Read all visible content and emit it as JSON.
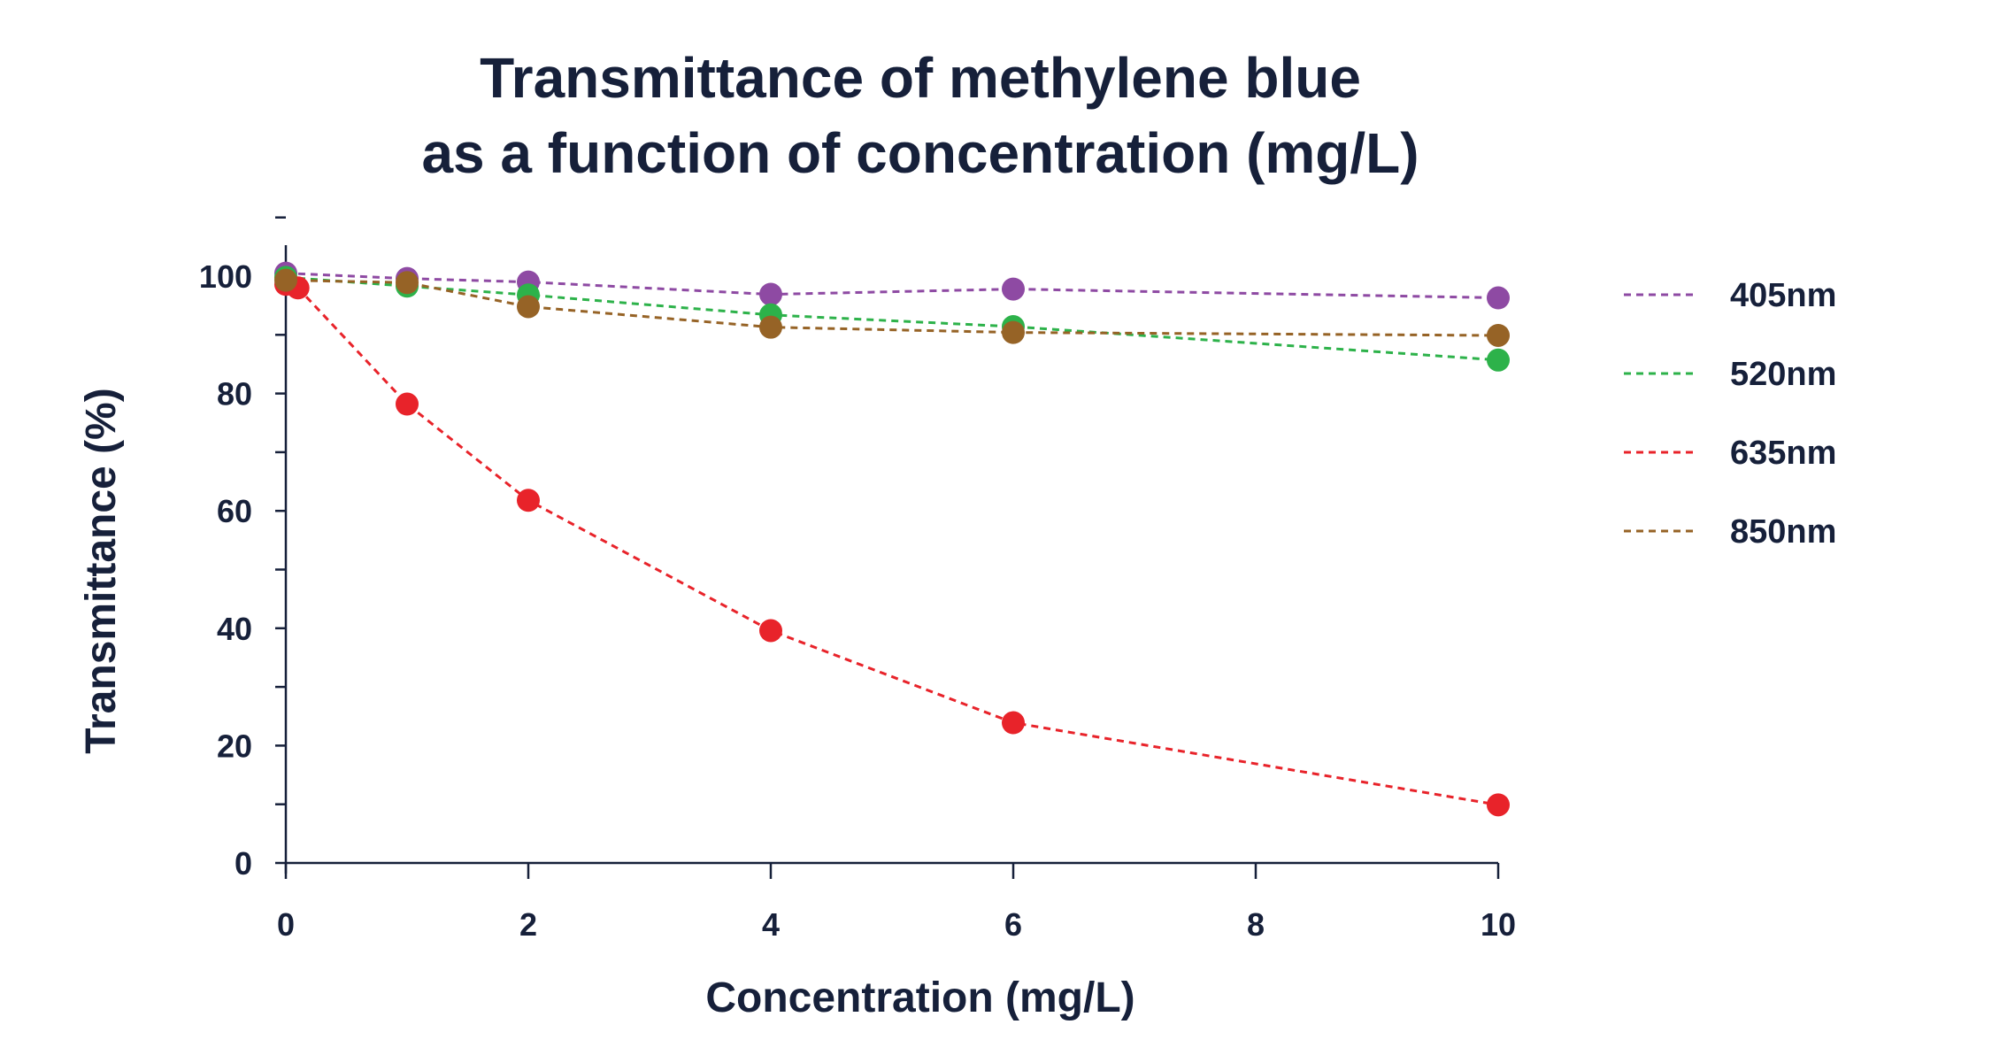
{
  "chart_data": {
    "type": "line",
    "title_lines": [
      "Transmittance of methylene blue",
      "as a function of concentration (mg/L)"
    ],
    "xlabel": "Concentration (mg/L)",
    "ylabel": "Transmittance (%)",
    "xlim": [
      0,
      10
    ],
    "ylim": [
      0,
      100
    ],
    "x_ticks": [
      "0",
      "2",
      "4",
      "6",
      "8",
      "10"
    ],
    "y_ticks": [
      "0",
      "20",
      "40",
      "60",
      "80",
      "100"
    ],
    "grid": false,
    "legend_position": "right",
    "line_style": "dashed",
    "series": [
      {
        "name": "405nm",
        "color": "#8e4aa3",
        "x": [
          0,
          1,
          2,
          4,
          6,
          10
        ],
        "y": [
          100.5,
          99.6,
          99.0,
          96.9,
          97.8,
          96.3
        ]
      },
      {
        "name": "520nm",
        "color": "#2db24a",
        "x": [
          0,
          1,
          2,
          4,
          6,
          10
        ],
        "y": [
          99.8,
          98.3,
          96.8,
          93.4,
          91.4,
          85.7
        ]
      },
      {
        "name": "635nm",
        "color": "#e8232a",
        "x": [
          0,
          0.1,
          1,
          2,
          4,
          6,
          10
        ],
        "y": [
          98.6,
          98.0,
          78.2,
          61.8,
          39.6,
          23.9,
          9.9
        ]
      },
      {
        "name": "850nm",
        "color": "#966326",
        "x": [
          0,
          1,
          2,
          4,
          6,
          10
        ],
        "y": [
          99.3,
          98.9,
          94.8,
          91.3,
          90.4,
          89.9
        ]
      }
    ]
  }
}
